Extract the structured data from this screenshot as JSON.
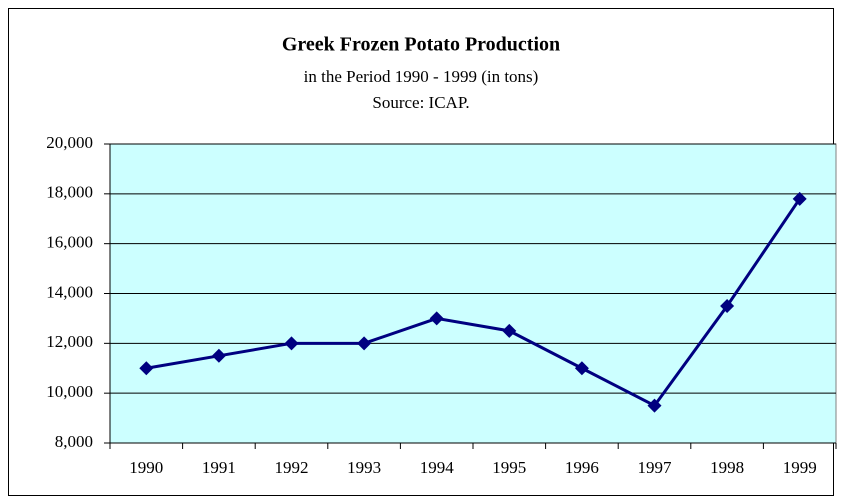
{
  "chart_data": {
    "type": "line",
    "title": "Greek Frozen Potato Production",
    "subtitle": "in the Period 1990 - 1999 (in tons)",
    "source": "Source: ICAP.",
    "categories": [
      "1990",
      "1991",
      "1992",
      "1993",
      "1994",
      "1995",
      "1996",
      "1997",
      "1998",
      "1999"
    ],
    "values": [
      11000,
      11500,
      12000,
      12000,
      13000,
      12500,
      11000,
      9500,
      13500,
      17800
    ],
    "color": "#000080",
    "ylim": [
      8000,
      20000
    ],
    "yticks": [
      {
        "value": 8000,
        "label": "8,000"
      },
      {
        "value": 10000,
        "label": "10,000"
      },
      {
        "value": 12000,
        "label": "12,000"
      },
      {
        "value": 14000,
        "label": "14,000"
      },
      {
        "value": 16000,
        "label": "16,000"
      },
      {
        "value": 18000,
        "label": "18,000"
      },
      {
        "value": 20000,
        "label": "20,000"
      }
    ],
    "grid": true
  }
}
